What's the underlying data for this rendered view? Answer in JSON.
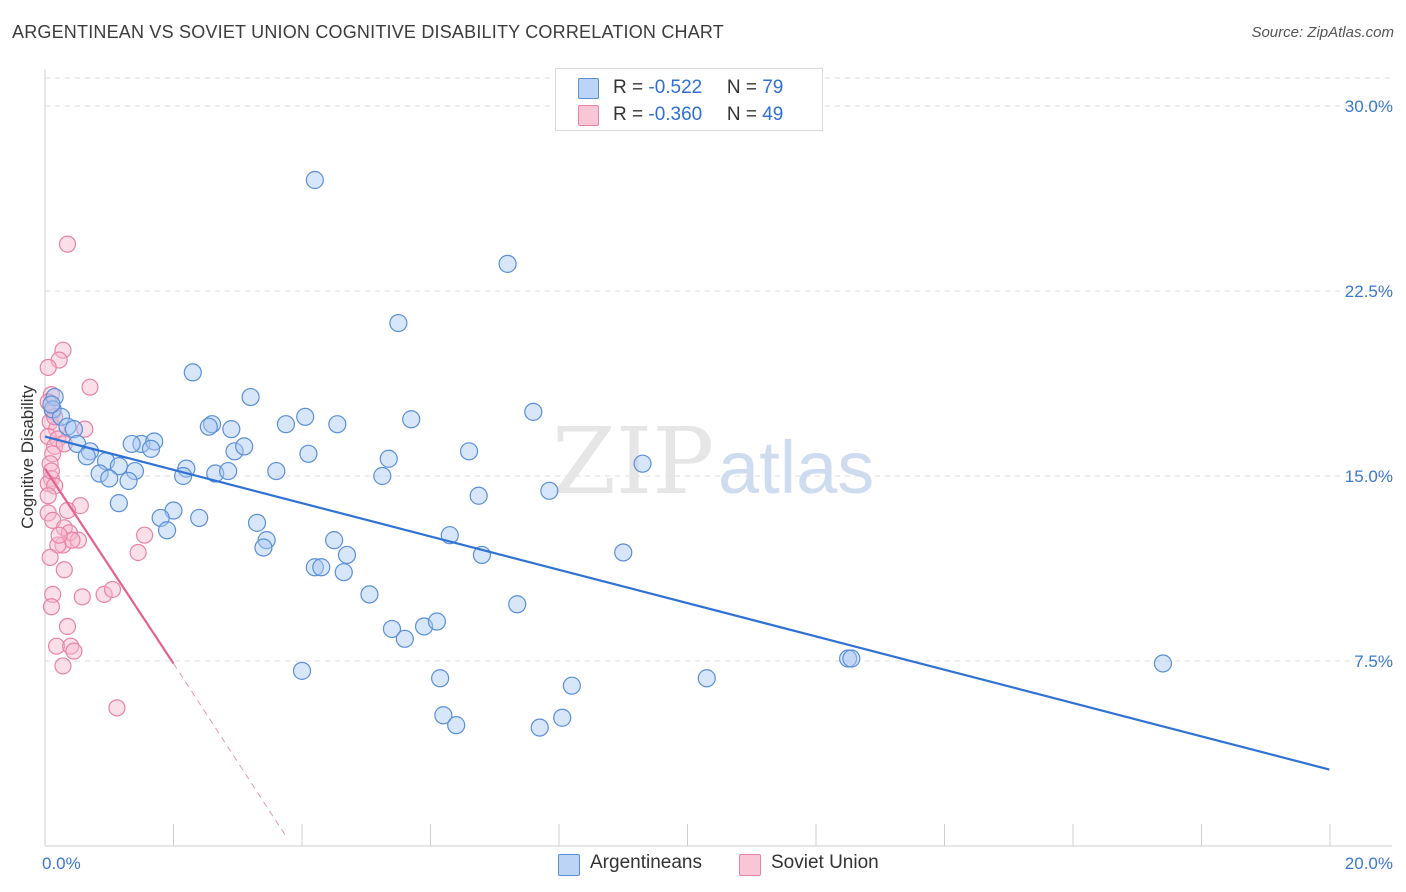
{
  "header": {
    "title": "ARGENTINEAN VS SOVIET UNION COGNITIVE DISABILITY CORRELATION CHART",
    "source": "Source: ZipAtlas.com"
  },
  "watermark": {
    "zip": "ZIP",
    "atlas": "atlas"
  },
  "colors": {
    "blue_fill": "#a9c8f2",
    "blue_stroke": "#5b8fd8",
    "blue_line": "#2f72d4",
    "pink_fill": "#f7b7cb",
    "pink_stroke": "#e883a6",
    "pink_line": "#e2628f",
    "tick_text": "#3b78d0"
  },
  "legend_top": {
    "rows": [
      {
        "r_label": "R = ",
        "r_value": "-0.522",
        "n_label": "N = ",
        "n_value": "79"
      },
      {
        "r_label": "R = ",
        "r_value": "-0.360",
        "n_label": "N = ",
        "n_value": "49"
      }
    ]
  },
  "legend_bottom": {
    "series_a": "Argentineans",
    "series_b": "Soviet Union"
  },
  "chart_data": {
    "type": "scatter",
    "title": "ARGENTINEAN VS SOVIET UNION COGNITIVE DISABILITY CORRELATION CHART",
    "xlabel": "",
    "ylabel": "Cognitive Disability",
    "xlim": [
      0,
      20
    ],
    "ylim": [
      0,
      31.5
    ],
    "x_tick_labels": [
      "0.0%",
      "20.0%"
    ],
    "y_ticks": [
      7.5,
      15.0,
      22.5,
      30.0
    ],
    "y_tick_labels": [
      "7.5%",
      "15.0%",
      "22.5%",
      "30.0%"
    ],
    "grid": "horizontal dashed",
    "series": [
      {
        "name": "Argentineans",
        "R": -0.522,
        "N": 79,
        "trend": {
          "x0": 0.0,
          "y0": 16.6,
          "x1": 19.99,
          "y1": 3.1
        },
        "points": [
          [
            4.2,
            27.0
          ],
          [
            7.2,
            23.6
          ],
          [
            5.5,
            21.2
          ],
          [
            2.3,
            19.2
          ],
          [
            3.2,
            18.2
          ],
          [
            0.15,
            18.2
          ],
          [
            0.12,
            17.7
          ],
          [
            0.25,
            17.4
          ],
          [
            0.35,
            17.0
          ],
          [
            0.45,
            16.9
          ],
          [
            2.6,
            17.1
          ],
          [
            2.55,
            17.0
          ],
          [
            2.9,
            16.9
          ],
          [
            3.75,
            17.1
          ],
          [
            4.05,
            17.4
          ],
          [
            4.55,
            17.1
          ],
          [
            5.7,
            17.3
          ],
          [
            7.6,
            17.6
          ],
          [
            1.5,
            16.3
          ],
          [
            1.7,
            16.4
          ],
          [
            1.65,
            16.1
          ],
          [
            0.5,
            16.3
          ],
          [
            0.7,
            16.0
          ],
          [
            0.65,
            15.8
          ],
          [
            1.35,
            16.3
          ],
          [
            2.95,
            16.0
          ],
          [
            3.1,
            16.2
          ],
          [
            4.1,
            15.9
          ],
          [
            5.35,
            15.7
          ],
          [
            6.6,
            16.0
          ],
          [
            0.95,
            15.6
          ],
          [
            1.15,
            15.4
          ],
          [
            1.4,
            15.2
          ],
          [
            0.85,
            15.1
          ],
          [
            1.0,
            14.9
          ],
          [
            1.3,
            14.8
          ],
          [
            2.2,
            15.3
          ],
          [
            2.15,
            15.0
          ],
          [
            2.65,
            15.1
          ],
          [
            2.85,
            15.2
          ],
          [
            3.6,
            15.2
          ],
          [
            5.25,
            15.0
          ],
          [
            9.3,
            15.5
          ],
          [
            7.85,
            14.4
          ],
          [
            6.75,
            14.2
          ],
          [
            1.15,
            13.9
          ],
          [
            2.0,
            13.6
          ],
          [
            1.8,
            13.3
          ],
          [
            2.4,
            13.3
          ],
          [
            1.9,
            12.8
          ],
          [
            3.3,
            13.1
          ],
          [
            6.3,
            12.6
          ],
          [
            3.45,
            12.4
          ],
          [
            3.4,
            12.1
          ],
          [
            4.5,
            12.4
          ],
          [
            4.7,
            11.8
          ],
          [
            6.8,
            11.8
          ],
          [
            9.0,
            11.9
          ],
          [
            4.2,
            11.3
          ],
          [
            4.3,
            11.3
          ],
          [
            4.65,
            11.1
          ],
          [
            5.05,
            10.2
          ],
          [
            7.35,
            9.8
          ],
          [
            5.4,
            8.8
          ],
          [
            5.6,
            8.4
          ],
          [
            5.9,
            8.9
          ],
          [
            6.1,
            9.1
          ],
          [
            4.0,
            7.1
          ],
          [
            12.5,
            7.6
          ],
          [
            12.55,
            7.6
          ],
          [
            17.4,
            7.4
          ],
          [
            6.15,
            6.8
          ],
          [
            10.3,
            6.8
          ],
          [
            8.2,
            6.5
          ],
          [
            6.2,
            5.3
          ],
          [
            6.4,
            4.9
          ],
          [
            7.7,
            4.8
          ],
          [
            8.05,
            5.2
          ],
          [
            0.1,
            17.9
          ]
        ]
      },
      {
        "name": "Soviet Union",
        "R": -0.36,
        "N": 49,
        "trend": {
          "x0": 0.0,
          "y0": 15.3,
          "x1": 2.0,
          "y1": 7.4,
          "dashed_x1": 3.75,
          "dashed_y1": 0.4
        },
        "points": [
          [
            0.35,
            24.4
          ],
          [
            0.28,
            20.1
          ],
          [
            0.22,
            19.7
          ],
          [
            0.05,
            19.4
          ],
          [
            0.7,
            18.6
          ],
          [
            0.1,
            18.3
          ],
          [
            0.05,
            18.0
          ],
          [
            0.12,
            17.6
          ],
          [
            0.08,
            17.2
          ],
          [
            0.18,
            16.9
          ],
          [
            0.62,
            16.9
          ],
          [
            0.05,
            16.6
          ],
          [
            0.2,
            16.5
          ],
          [
            0.15,
            16.2
          ],
          [
            0.3,
            16.3
          ],
          [
            0.12,
            15.9
          ],
          [
            0.08,
            15.5
          ],
          [
            0.1,
            14.9
          ],
          [
            0.05,
            14.7
          ],
          [
            0.15,
            14.6
          ],
          [
            0.55,
            13.8
          ],
          [
            0.35,
            13.6
          ],
          [
            0.05,
            13.5
          ],
          [
            0.12,
            13.2
          ],
          [
            0.3,
            12.9
          ],
          [
            0.38,
            12.7
          ],
          [
            1.55,
            12.6
          ],
          [
            0.52,
            12.4
          ],
          [
            0.28,
            12.2
          ],
          [
            0.42,
            12.4
          ],
          [
            0.2,
            12.2
          ],
          [
            1.45,
            11.9
          ],
          [
            0.3,
            11.2
          ],
          [
            0.12,
            10.2
          ],
          [
            0.58,
            10.1
          ],
          [
            0.92,
            10.2
          ],
          [
            1.05,
            10.4
          ],
          [
            0.1,
            9.7
          ],
          [
            0.35,
            8.9
          ],
          [
            0.18,
            8.1
          ],
          [
            0.4,
            8.1
          ],
          [
            0.45,
            7.9
          ],
          [
            0.28,
            7.3
          ],
          [
            1.12,
            5.6
          ],
          [
            0.05,
            14.2
          ],
          [
            0.15,
            17.4
          ],
          [
            0.22,
            12.6
          ],
          [
            0.08,
            11.7
          ],
          [
            0.1,
            15.2
          ]
        ]
      }
    ]
  }
}
